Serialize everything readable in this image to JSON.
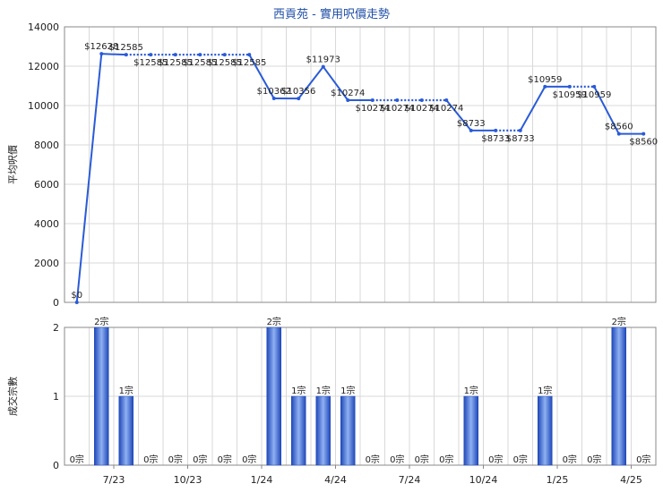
{
  "chart_data": [
    {
      "type": "line",
      "title": "西貢苑 - 實用呎價走勢",
      "ylabel": "平均呎價",
      "ylim": [
        0,
        14000
      ],
      "yticks": [
        0,
        2000,
        4000,
        6000,
        8000,
        10000,
        12000,
        14000
      ],
      "grid": true,
      "series": [
        {
          "values": [
            0,
            12628,
            12585,
            12585,
            12585,
            12585,
            12585,
            12585,
            10362,
            10356,
            11973,
            10274,
            10274,
            10274,
            10274,
            10274,
            8733,
            8733,
            8733,
            10959,
            10959,
            10959,
            8560,
            8560
          ],
          "labels": [
            "$0",
            "$12628",
            "$12585",
            "$12585",
            "$12585",
            "$12585",
            "$12585",
            "$12585",
            "$10362",
            "$10356",
            "$11973",
            "$10274",
            "$10274",
            "$10274",
            "$10274",
            "$10274",
            "$8733",
            "$8733",
            "$8733",
            "$10959",
            "$10959",
            "$10959",
            "$8560",
            "$8560"
          ],
          "dotted": [
            false,
            false,
            true,
            true,
            true,
            true,
            true,
            false,
            false,
            false,
            false,
            false,
            true,
            true,
            true,
            false,
            false,
            true,
            false,
            false,
            true,
            false,
            false,
            true
          ]
        }
      ]
    },
    {
      "type": "bar",
      "ylabel": "成交宗數",
      "ylim": [
        0,
        2
      ],
      "yticks": [
        0,
        1,
        2
      ],
      "grid": true,
      "x_tick_labels": [
        "7/23",
        "10/23",
        "1/24",
        "4/24",
        "7/24",
        "10/24",
        "1/25",
        "4/25"
      ],
      "x_tick_index": [
        2,
        5,
        8,
        11,
        14,
        17,
        20,
        23
      ],
      "values": [
        0,
        2,
        1,
        0,
        0,
        0,
        0,
        0,
        2,
        1,
        1,
        1,
        0,
        0,
        0,
        0,
        1,
        0,
        0,
        1,
        0,
        0,
        2,
        0
      ],
      "labels": [
        "0宗",
        "2宗",
        "1宗",
        "0宗",
        "0宗",
        "0宗",
        "0宗",
        "0宗",
        "2宗",
        "1宗",
        "1宗",
        "1宗",
        "0宗",
        "0宗",
        "0宗",
        "0宗",
        "1宗",
        "0宗",
        "0宗",
        "1宗",
        "0宗",
        "0宗",
        "2宗",
        "0宗"
      ]
    }
  ],
  "colors": {
    "line": "#2a5bd7",
    "bar_dark": "#1f48b8",
    "bar_light": "#8fb0f2"
  }
}
